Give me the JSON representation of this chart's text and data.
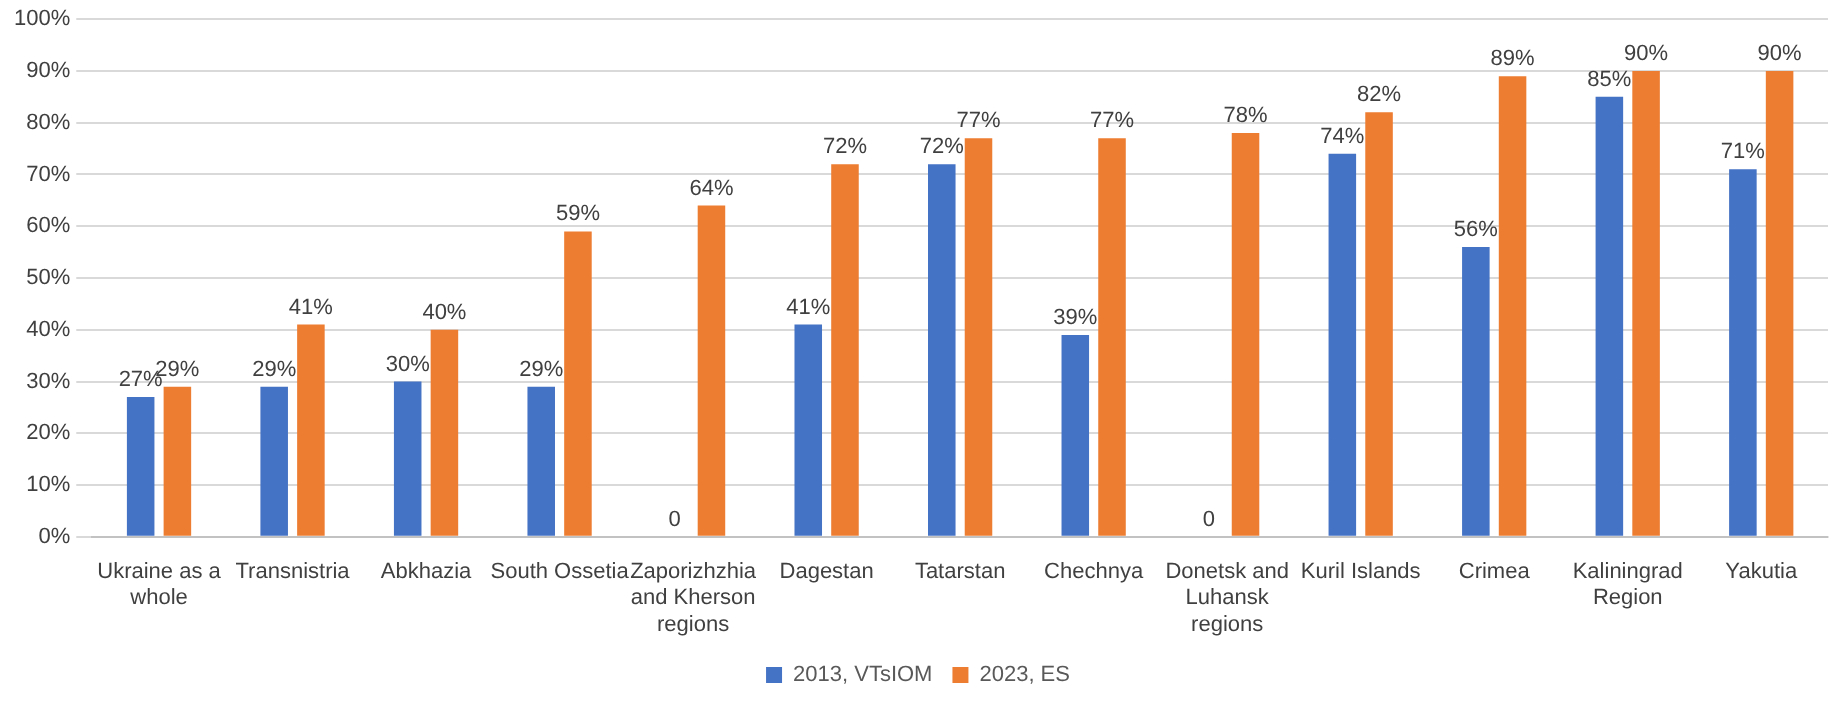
{
  "chart_data": {
    "type": "bar",
    "categories": [
      "Ukraine as a whole",
      "Transnistria",
      "Abkhazia",
      "South Ossetia",
      "Zaporizhzhia and Kherson regions",
      "Dagestan",
      "Tatarstan",
      "Chechnya",
      "Donetsk and Luhansk regions",
      "Kuril Islands",
      "Crimea",
      "Kaliningrad Region",
      "Yakutia"
    ],
    "series": [
      {
        "name": "2013, VTsIOM",
        "color": "#4472c4",
        "values": [
          27,
          29,
          30,
          29,
          0,
          41,
          72,
          39,
          0,
          74,
          56,
          85,
          71
        ],
        "value_labels": [
          "27%",
          "29%",
          "30%",
          "29%",
          "0",
          "41%",
          "72%",
          "39%",
          "0",
          "74%",
          "56%",
          "85%",
          "71%"
        ]
      },
      {
        "name": "2023, ES",
        "color": "#ed7d31",
        "values": [
          29,
          41,
          40,
          59,
          64,
          72,
          77,
          77,
          78,
          82,
          89,
          90,
          90
        ],
        "value_labels": [
          "29%",
          "41%",
          "40%",
          "59%",
          "64%",
          "72%",
          "77%",
          "77%",
          "78%",
          "82%",
          "89%",
          "90%",
          "90%"
        ]
      }
    ],
    "ylim": [
      0,
      100
    ],
    "yticks": [
      {
        "value": 0,
        "label": "0%"
      },
      {
        "value": 10,
        "label": "10%"
      },
      {
        "value": 20,
        "label": "20%"
      },
      {
        "value": 30,
        "label": "30%"
      },
      {
        "value": 40,
        "label": "40%"
      },
      {
        "value": 50,
        "label": "50%"
      },
      {
        "value": 60,
        "label": "60%"
      },
      {
        "value": 70,
        "label": "70%"
      },
      {
        "value": 80,
        "label": "80%"
      },
      {
        "value": 90,
        "label": "90%"
      },
      {
        "value": 100,
        "label": "100%"
      }
    ],
    "grid": "y",
    "legend": "bottom"
  }
}
